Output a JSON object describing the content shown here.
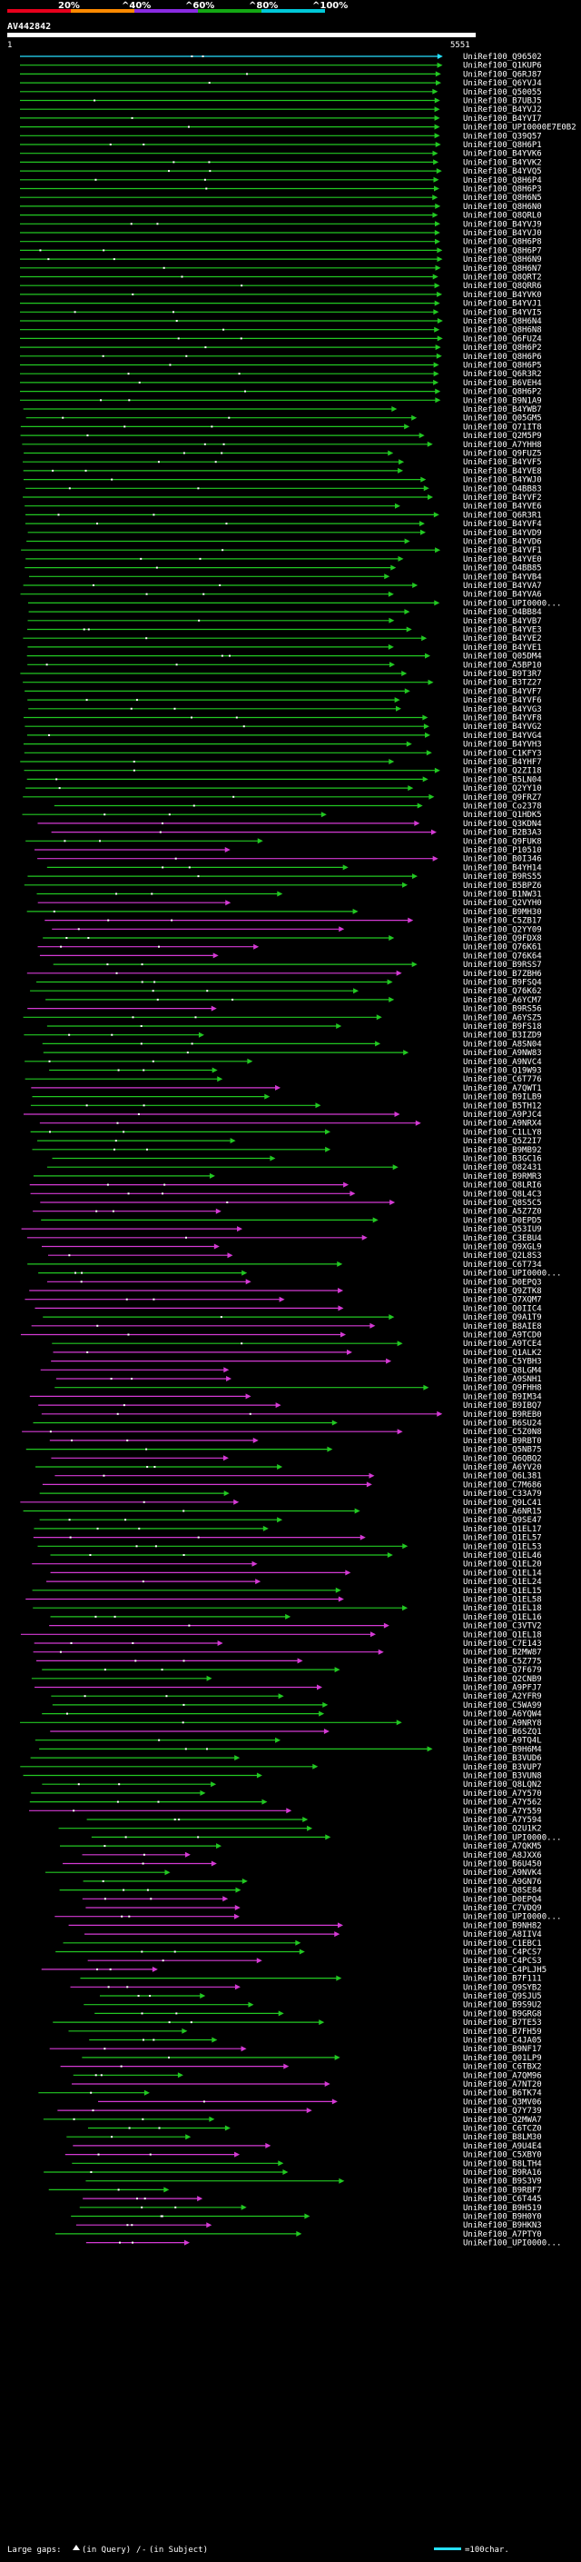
{
  "chart_data": {
    "type": "alignment-overview",
    "query_id": "AV442842",
    "query_start": "1",
    "query_end": "5551",
    "scale_ticks": [
      "20%",
      "^40%",
      "^60%",
      "^80%",
      "^100%"
    ],
    "scale_colors": [
      "#e8001c",
      "#ff8a00",
      "#8a2be2",
      "#13a813",
      "#00c8d8"
    ],
    "hit_colors": {
      "high": "#26e0ff",
      "green": "#22c822",
      "magenta": "#d43ad4"
    },
    "legend": {
      "large_gaps": "Large gaps:",
      "in_query": "(in Query)",
      "slash": "/",
      "in_subject": "(in Subject)",
      "bar_label": "=100char."
    },
    "hits": [
      "UniRef100_Q96502",
      "UniRef100_Q1KUP6",
      "UniRef100_Q6RJ87",
      "UniRef100_Q6YVJ4",
      "UniRef100_Q50055",
      "UniRef100_B7UBJ5",
      "UniRef100_B4YVJ2",
      "UniRef100_B4YVI7",
      "UniRef100_UPI0000E7E0B2",
      "UniRef100_Q39Q57",
      "UniRef100_Q8H6P1",
      "UniRef100_B4YVK6",
      "UniRef100_B4YVK2",
      "UniRef100_B4YVQ5",
      "UniRef100_Q8H6P4",
      "UniRef100_Q8H6P3",
      "UniRef100_Q8H6N5",
      "UniRef100_Q8H6N0",
      "UniRef100_Q8QRL0",
      "UniRef100_B4YVJ9",
      "UniRef100_B4YVJ0",
      "UniRef100_Q8H6P8",
      "UniRef100_Q8H6P7",
      "UniRef100_Q8H6N9",
      "UniRef100_Q8H6N7",
      "UniRef100_Q8QRT2",
      "UniRef100_Q8QRR6",
      "UniRef100_B4YVK0",
      "UniRef100_B4YVJ1",
      "UniRef100_B4YVI5",
      "UniRef100_Q8H6N4",
      "UniRef100_Q8H6N8",
      "UniRef100_Q6FUZ4",
      "UniRef100_Q8H6P2",
      "UniRef100_Q8H6P6",
      "UniRef100_Q8H6P5",
      "UniRef100_Q6R3R2",
      "UniRef100_B6VEH4",
      "UniRef100_Q8H6P2",
      "UniRef100_B9N1A9",
      "UniRef100_B4YWB7",
      "UniRef100_Q05GM5",
      "UniRef100_Q71IT8",
      "UniRef100_Q2M5P9",
      "UniRef100_A7YHH8",
      "UniRef100_Q9FUZ5",
      "UniRef100_B4YVF5",
      "UniRef100_B4YVE8",
      "UniRef100_B4YWJ0",
      "UniRef100_O4BB83",
      "UniRef100_B4YVF2",
      "UniRef100_B4YVE6",
      "UniRef100_Q6R3R1",
      "UniRef100_B4YVF4",
      "UniRef100_B4YVD9",
      "UniRef100_B4YVD6",
      "UniRef100_B4YVF1",
      "UniRef100_B4YVE0",
      "UniRef100_O4BB85",
      "UniRef100_B4YVB4",
      "UniRef100_B4YVA7",
      "UniRef100_B4YVA6",
      "UniRef100_UPI0000...",
      "UniRef100_O4BB84",
      "UniRef100_B4YVB7",
      "UniRef100_B4YVE3",
      "UniRef100_B4YVE2",
      "UniRef100_B4YVE1",
      "UniRef100_Q05DM4",
      "UniRef100_A5BP10",
      "UniRef100_B9T3R7",
      "UniRef100_B3TZ27",
      "UniRef100_B4YVF7",
      "UniRef100_B4YVF6",
      "UniRef100_B4YVG3",
      "UniRef100_B4YVF8",
      "UniRef100_B4YVG2",
      "UniRef100_B4YVG4",
      "UniRef100_B4YVH3",
      "UniRef100_C1KFY3",
      "UniRef100_B4YHF7",
      "UniRef100_Q2ZI18",
      "UniRef100_B5LN04",
      "UniRef100_Q2YY10",
      "UniRef100_Q9FRZ7",
      "UniRef100_Co2378",
      "UniRef100_Q1HDK5",
      "UniRef100_Q3KDN4",
      "UniRef100_B2B3A3",
      "UniRef100_Q9FUK8",
      "UniRef100_P10510",
      "UniRef100_B0I346",
      "UniRef100_B4YH14",
      "UniRef100_B9RS55",
      "UniRef100_B5BPZ6",
      "UniRef100_B1NW31",
      "UniRef100_Q2VYH0",
      "UniRef100_B9MH30",
      "UniRef100_C5ZB17",
      "UniRef100_Q2YY09",
      "UniRef100_Q9FDX8",
      "UniRef100_Q76K61",
      "UniRef100_Q76K64",
      "UniRef100_B9RSS7",
      "UniRef100_B7ZBH6",
      "UniRef100_B9FSQ4",
      "UniRef100_Q76K62",
      "UniRef100_A6YCM7",
      "UniRef100_B9RS56",
      "UniRef100_A6YSZ5",
      "UniRef100_B9FS18",
      "UniRef100_B3IZD9",
      "UniRef100_A8SN04",
      "UniRef100_A9NW83",
      "UniRef100_A9NVC4",
      "UniRef100_Q19W93",
      "UniRef100_C6T776",
      "UniRef100_A7QWT1",
      "UniRef100_B9ILB9",
      "UniRef100_B5TH12",
      "UniRef100_A9PJC4",
      "UniRef100_A9NRX4",
      "UniRef100_C1LLY8",
      "UniRef100_Q5Z2I7",
      "UniRef100_B9MB92",
      "UniRef100_B3GC16",
      "UniRef100_O82431",
      "UniRef100_B9RMR3",
      "UniRef100_Q8LRI6",
      "UniRef100_Q8L4C3",
      "UniRef100_Q8S5C5",
      "UniRef100_A5Z7Z0",
      "UniRef100_D0EPD5",
      "UniRef100_Q53IU9",
      "UniRef100_C3EBU4",
      "UniRef100_Q9XGL9",
      "UniRef100_Q2L8S3",
      "UniRef100_C6T734",
      "UniRef100_UPI0000...",
      "UniRef100_D0EPQ3",
      "UniRef100_Q9ZTK8",
      "UniRef100_Q7XQM7",
      "UniRef100_Q0IIC4",
      "UniRef100_Q9A1T9",
      "UniRef100_B8AIE8",
      "UniRef100_A9TCD0",
      "UniRef100_A9TCE4",
      "UniRef100_Q1ALK2",
      "UniRef100_C5YBH3",
      "UniRef100_Q8LGM4",
      "UniRef100_A9SNH1",
      "UniRef100_Q9FHH8",
      "UniRef100_B9IM34",
      "UniRef100_B9IBQ7",
      "UniRef100_B9REB0",
      "UniRef100_B6SU24",
      "UniRef100_C5Z0N8",
      "UniRef100_B9RBT0",
      "UniRef100_Q5NB75",
      "UniRef100_Q6QBQ2",
      "UniRef100_A6YV20",
      "UniRef100_Q6L381",
      "UniRef100_C7M686",
      "UniRef100_C33A79",
      "UniRef100_Q9LC41",
      "UniRef100_A6NR15",
      "UniRef100_Q9SE47",
      "UniRef100_Q1EL17",
      "UniRef100_Q1EL57",
      "UniRef100_Q1EL53",
      "UniRef100_Q1EL46",
      "UniRef100_Q1EL20",
      "UniRef100_Q1EL14",
      "UniRef100_Q1EL24",
      "UniRef100_Q1EL15",
      "UniRef100_Q1EL58",
      "UniRef100_Q1EL18",
      "UniRef100_Q1EL16",
      "UniRef100_C3VTV2",
      "UniRef100_Q1EL18",
      "UniRef100_C7E143",
      "UniRef100_B2MW87",
      "UniRef100_C5Z775",
      "UniRef100_Q7F679",
      "UniRef100_Q2CNB9",
      "UniRef100_A9PFJ7",
      "UniRef100_A2YFR9",
      "UniRef100_C5WA99",
      "UniRef100_A6YQW4",
      "UniRef100_A9NRY8",
      "UniRef100_B6SZQ1",
      "UniRef100_A9TQ4L",
      "UniRef100_B9H6M4",
      "UniRef100_B3VUD6",
      "UniRef100_B3VUP7",
      "UniRef100_B3VUN8",
      "UniRef100_Q8LQN2",
      "UniRef100_A7Y570",
      "UniRef100_A7Y562",
      "UniRef100_A7Y559",
      "UniRef100_A7Y594",
      "UniRef100_Q2U1K2",
      "UniRef100_UPI0000...",
      "UniRef100_A7QKM5",
      "UniRef100_A8JXX6",
      "UniRef100_B6U450",
      "UniRef100_A9NVK4",
      "UniRef100_A9GN76",
      "UniRef100_Q8SE84",
      "UniRef100_D0EPQ4",
      "UniRef100_C7VDQ9",
      "UniRef100_UPI0000...",
      "UniRef100_B9NH82",
      "UniRef100_A8IIV4",
      "UniRef100_C1EBC1",
      "UniRef100_C4PCS7",
      "UniRef100_C4PCS3",
      "UniRef100_C4PLJH5",
      "UniRef100_B7F111",
      "UniRef100_Q9SYB2",
      "UniRef100_Q9SJU5",
      "UniRef100_B9S9U2",
      "UniRef100_B9GRG8",
      "UniRef100_B7TE53",
      "UniRef100_B7FH59",
      "UniRef100_C4JA05",
      "UniRef100_B9NF17",
      "UniRef100_Q01LP9",
      "UniRef100_C6TBX2",
      "UniRef100_A7QM96",
      "UniRef100_A7NT20",
      "UniRef100_B6TK74",
      "UniRef100_Q3MV06",
      "UniRef100_Q7Y739",
      "UniRef100_Q2MWA7",
      "UniRef100_C6TCZ0",
      "UniRef100_B8LM30",
      "UniRef100_A9U4E4",
      "UniRef100_C5XBY0",
      "UniRef100_B8LTH4",
      "UniRef100_B9RA16",
      "UniRef100_B9S3V9",
      "UniRef100_B9RBF7",
      "UniRef100_C6T445",
      "UniRef100_B9H519",
      "UniRef100_B9H0Y0",
      "UniRef100_B9HKN3",
      "UniRef100_A7PTY0",
      "UniRef100_UPI0000..."
    ]
  }
}
